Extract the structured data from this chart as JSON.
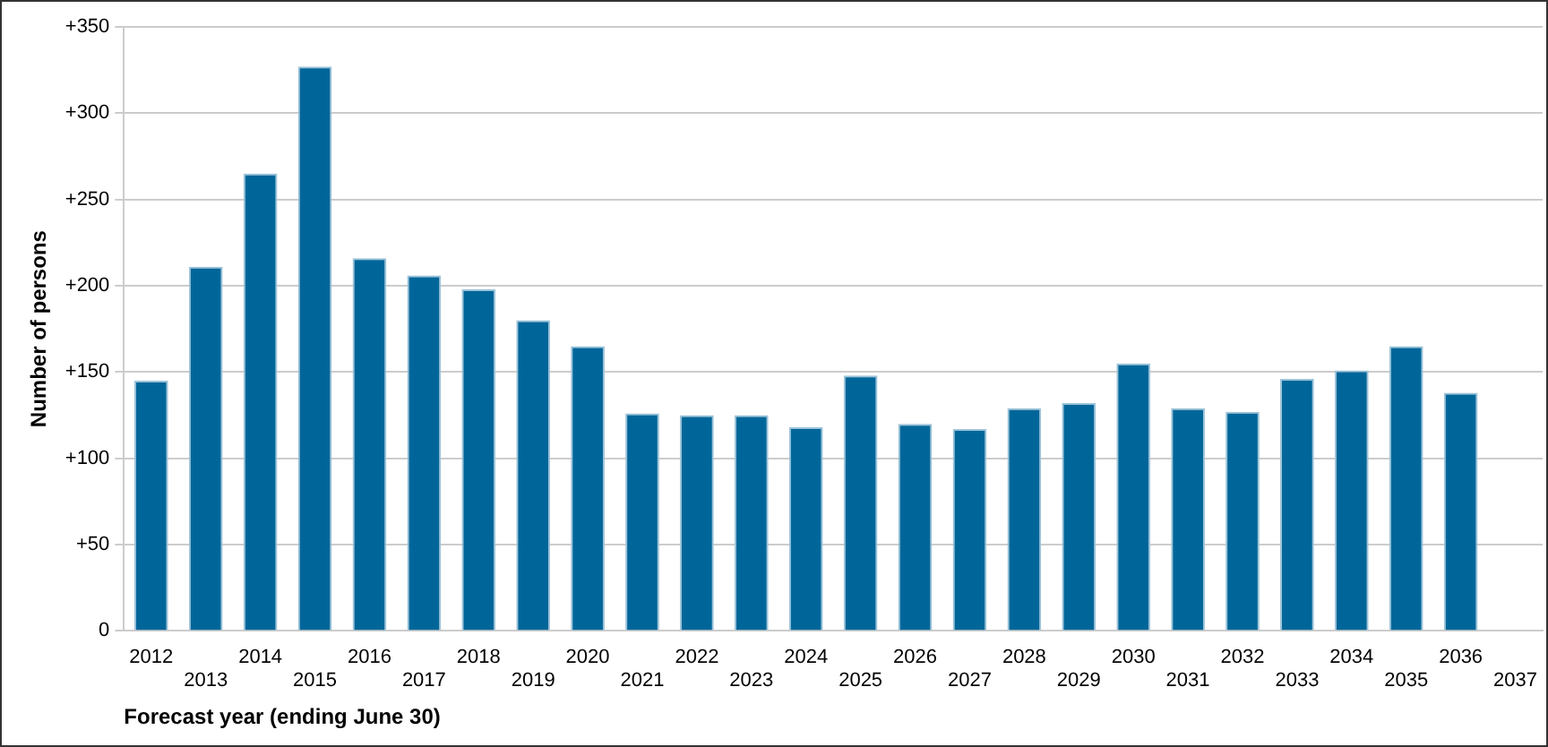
{
  "chart_data": {
    "type": "bar",
    "xlabel": "Forecast year (ending June 30)",
    "ylabel": "Number of persons",
    "categories": [
      "2012",
      "2013",
      "2014",
      "2015",
      "2016",
      "2017",
      "2018",
      "2019",
      "2020",
      "2021",
      "2022",
      "2023",
      "2024",
      "2025",
      "2026",
      "2027",
      "2028",
      "2029",
      "2030",
      "2031",
      "2032",
      "2033",
      "2034",
      "2035",
      "2036",
      "2037"
    ],
    "values": [
      145,
      211,
      265,
      327,
      216,
      206,
      198,
      180,
      165,
      126,
      125,
      125,
      118,
      148,
      120,
      117,
      129,
      132,
      155,
      129,
      127,
      146,
      151,
      165,
      138,
      null
    ],
    "color": "#006699",
    "ylim": [
      0,
      350
    ],
    "yticks": [
      0,
      {
        "value": 50,
        "label": "+50"
      },
      {
        "value": 100,
        "label": "+100"
      },
      {
        "value": 150,
        "label": "+150"
      },
      {
        "value": 200,
        "label": "+200"
      },
      {
        "value": 250,
        "label": "+250"
      },
      {
        "value": 300,
        "label": "+300"
      },
      {
        "value": 350,
        "label": "+350"
      }
    ],
    "grid": "y"
  }
}
